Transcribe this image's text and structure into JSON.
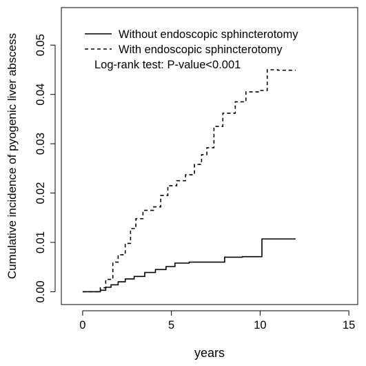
{
  "chart_data": {
    "type": "line",
    "title": "",
    "xlabel": "years",
    "ylabel": "Cumulative incidence of pyogenic liver abscess",
    "xlim": [
      -1.2,
      15.5
    ],
    "ylim": [
      -0.0026,
      0.0576
    ],
    "xticks": [
      0,
      5,
      10,
      15
    ],
    "xtick_labels": [
      "0",
      "5",
      "10",
      "15"
    ],
    "yticks": [
      0.0,
      0.01,
      0.02,
      0.03,
      0.04,
      0.05
    ],
    "ytick_labels": [
      "0.00",
      "0.01",
      "0.02",
      "0.03",
      "0.04",
      "0.05"
    ],
    "grid": false,
    "legend_position": "top-left",
    "annotation": "Log-rank test: P-value<0.001",
    "series": [
      {
        "name": "Without endoscopic sphincterotomy",
        "line_style": "solid",
        "color": "#000000",
        "x": [
          0,
          1.0,
          1.3,
          1.6,
          2.0,
          2.4,
          2.9,
          3.5,
          4.1,
          4.7,
          5.2,
          6.0,
          7.0,
          8.0,
          9.0,
          10.1,
          11.0,
          12.0
        ],
        "y": [
          0.0,
          0.0003,
          0.0009,
          0.0014,
          0.002,
          0.0026,
          0.0031,
          0.0039,
          0.0045,
          0.0051,
          0.0058,
          0.006,
          0.006,
          0.007,
          0.0071,
          0.0107,
          0.0107,
          0.0107
        ]
      },
      {
        "name": "With endoscopic sphincterotomy",
        "line_style": "dashed",
        "color": "#000000",
        "x": [
          0,
          1.0,
          1.3,
          1.7,
          2.0,
          2.4,
          2.7,
          3.0,
          3.4,
          4.0,
          4.4,
          4.8,
          5.3,
          5.8,
          6.3,
          6.7,
          7.0,
          7.4,
          7.9,
          8.6,
          9.2,
          10.0,
          10.4,
          11.0,
          12.0
        ],
        "y": [
          0.0,
          0.0008,
          0.0025,
          0.006,
          0.0075,
          0.0098,
          0.0128,
          0.0148,
          0.0165,
          0.0172,
          0.0195,
          0.0215,
          0.0225,
          0.0237,
          0.0258,
          0.0278,
          0.0292,
          0.0335,
          0.0362,
          0.0385,
          0.0405,
          0.0408,
          0.045,
          0.0449,
          0.0449
        ]
      }
    ]
  }
}
